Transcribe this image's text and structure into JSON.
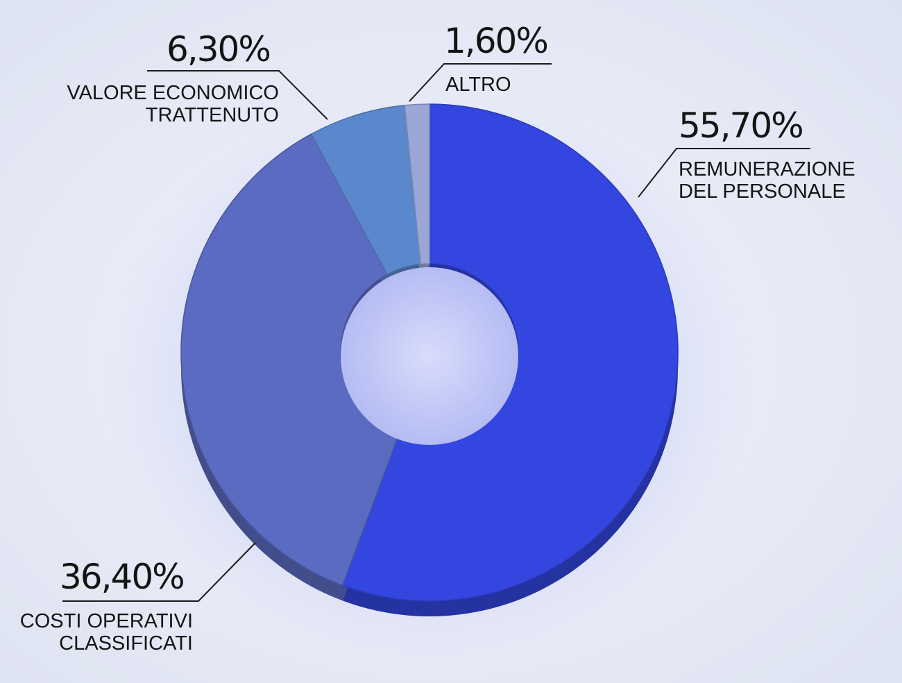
{
  "chart_data": {
    "type": "pie",
    "style": "donut",
    "categories": [
      "REMUNERAZIONE DEL PERSONALE",
      "COSTI OPERATIVI CLASSIFICATI",
      "VALORE ECONOMICO TRATTENUTO",
      "ALTRO"
    ],
    "values": [
      55.7,
      36.4,
      6.3,
      1.6
    ],
    "data_labels": [
      "55,70%",
      "36,40%",
      "6,30%",
      "1,60%"
    ],
    "label_lines": [
      [
        "REMUNERAZIONE",
        "DEL PERSONALE"
      ],
      [
        "COSTI OPERATIVI",
        "CLASSIFICATI"
      ],
      [
        "VALORE ECONOMICO",
        "TRATTENUTO"
      ],
      [
        "ALTRO"
      ]
    ],
    "colors": [
      "#3446e0",
      "#5b6bc2",
      "#5b88cc",
      "#9aa6d6"
    ],
    "title": "",
    "legend": "none"
  }
}
